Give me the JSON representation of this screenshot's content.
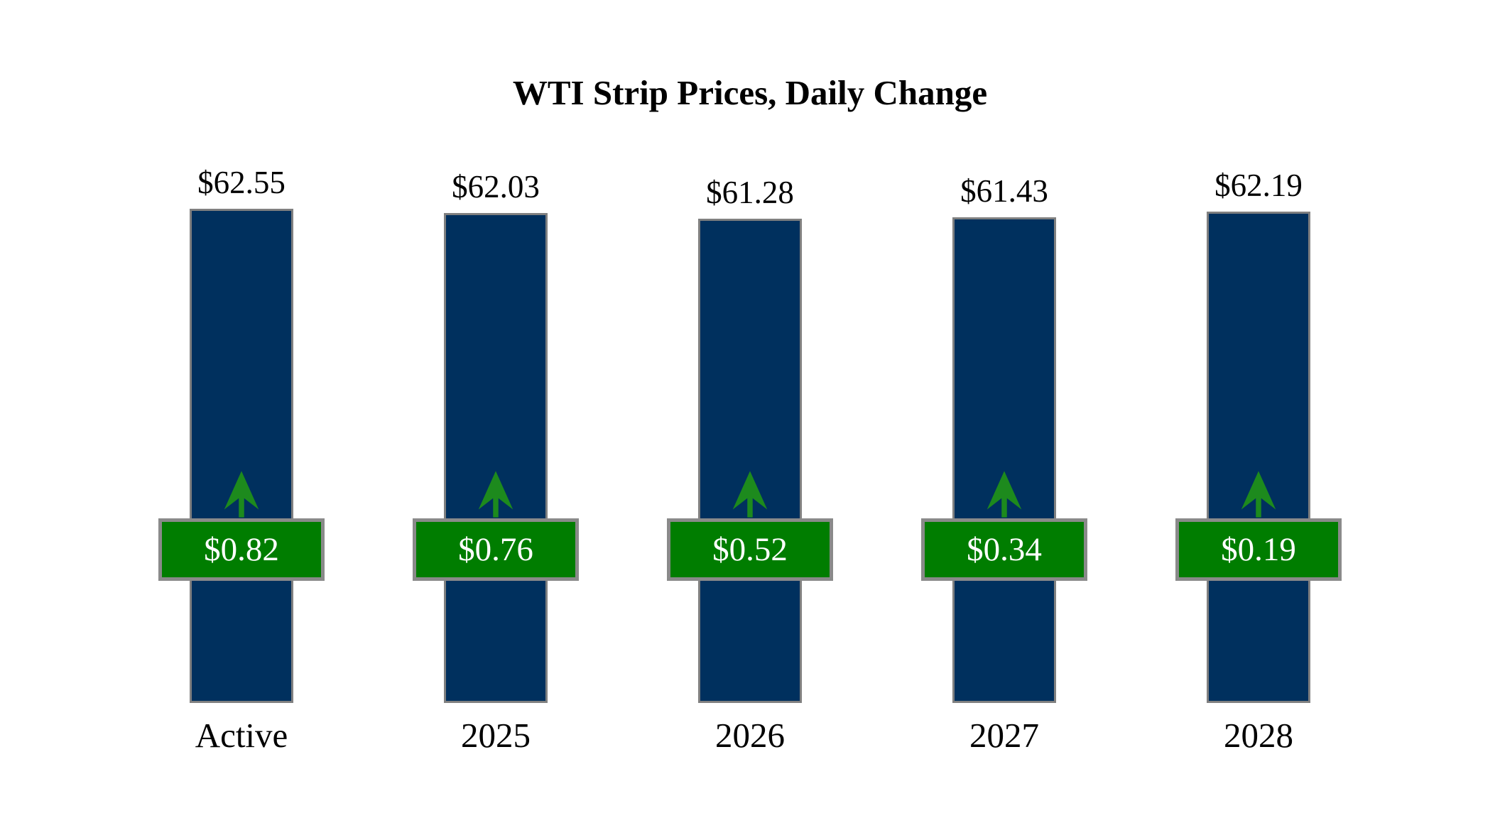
{
  "page": {
    "background": "#ffffff"
  },
  "chart_data": {
    "type": "bar",
    "title": "WTI Strip Prices, Daily Change",
    "categories": [
      "Active",
      "2025",
      "2026",
      "2027",
      "2028"
    ],
    "series": [
      {
        "name": "strip_price",
        "values": [
          62.55,
          62.03,
          61.28,
          61.43,
          62.19
        ]
      },
      {
        "name": "daily_change",
        "values": [
          0.82,
          0.76,
          0.52,
          0.34,
          0.19
        ]
      }
    ],
    "bars": [
      {
        "category": "Active",
        "value": 62.55,
        "price_label": "$62.55",
        "change": 0.82,
        "change_label": "$0.82",
        "direction": "up"
      },
      {
        "category": "2025",
        "value": 62.03,
        "price_label": "$62.03",
        "change": 0.76,
        "change_label": "$0.76",
        "direction": "up"
      },
      {
        "category": "2026",
        "value": 61.28,
        "price_label": "$61.28",
        "change": 0.52,
        "change_label": "$0.52",
        "direction": "up"
      },
      {
        "category": "2027",
        "value": 61.43,
        "price_label": "$61.43",
        "change": 0.34,
        "change_label": "$0.34",
        "direction": "up"
      },
      {
        "category": "2028",
        "value": 62.19,
        "price_label": "$62.19",
        "change": 0.19,
        "change_label": "$0.19",
        "direction": "up"
      }
    ],
    "ylim": [
      0,
      62.55
    ],
    "layout": {
      "grid": false,
      "legend": false,
      "axes_visible": false,
      "value_labels": "above-bars",
      "change_labels": "boxed-overlay-with-up-arrow"
    },
    "colors": {
      "bar": "#00305e",
      "bar_border": "#808080",
      "change_box": "#007d00",
      "change_box_border": "#8a8a8a",
      "arrow": "#1d8a1d",
      "change_text": "#ffffff",
      "label_text": "#000000"
    }
  }
}
